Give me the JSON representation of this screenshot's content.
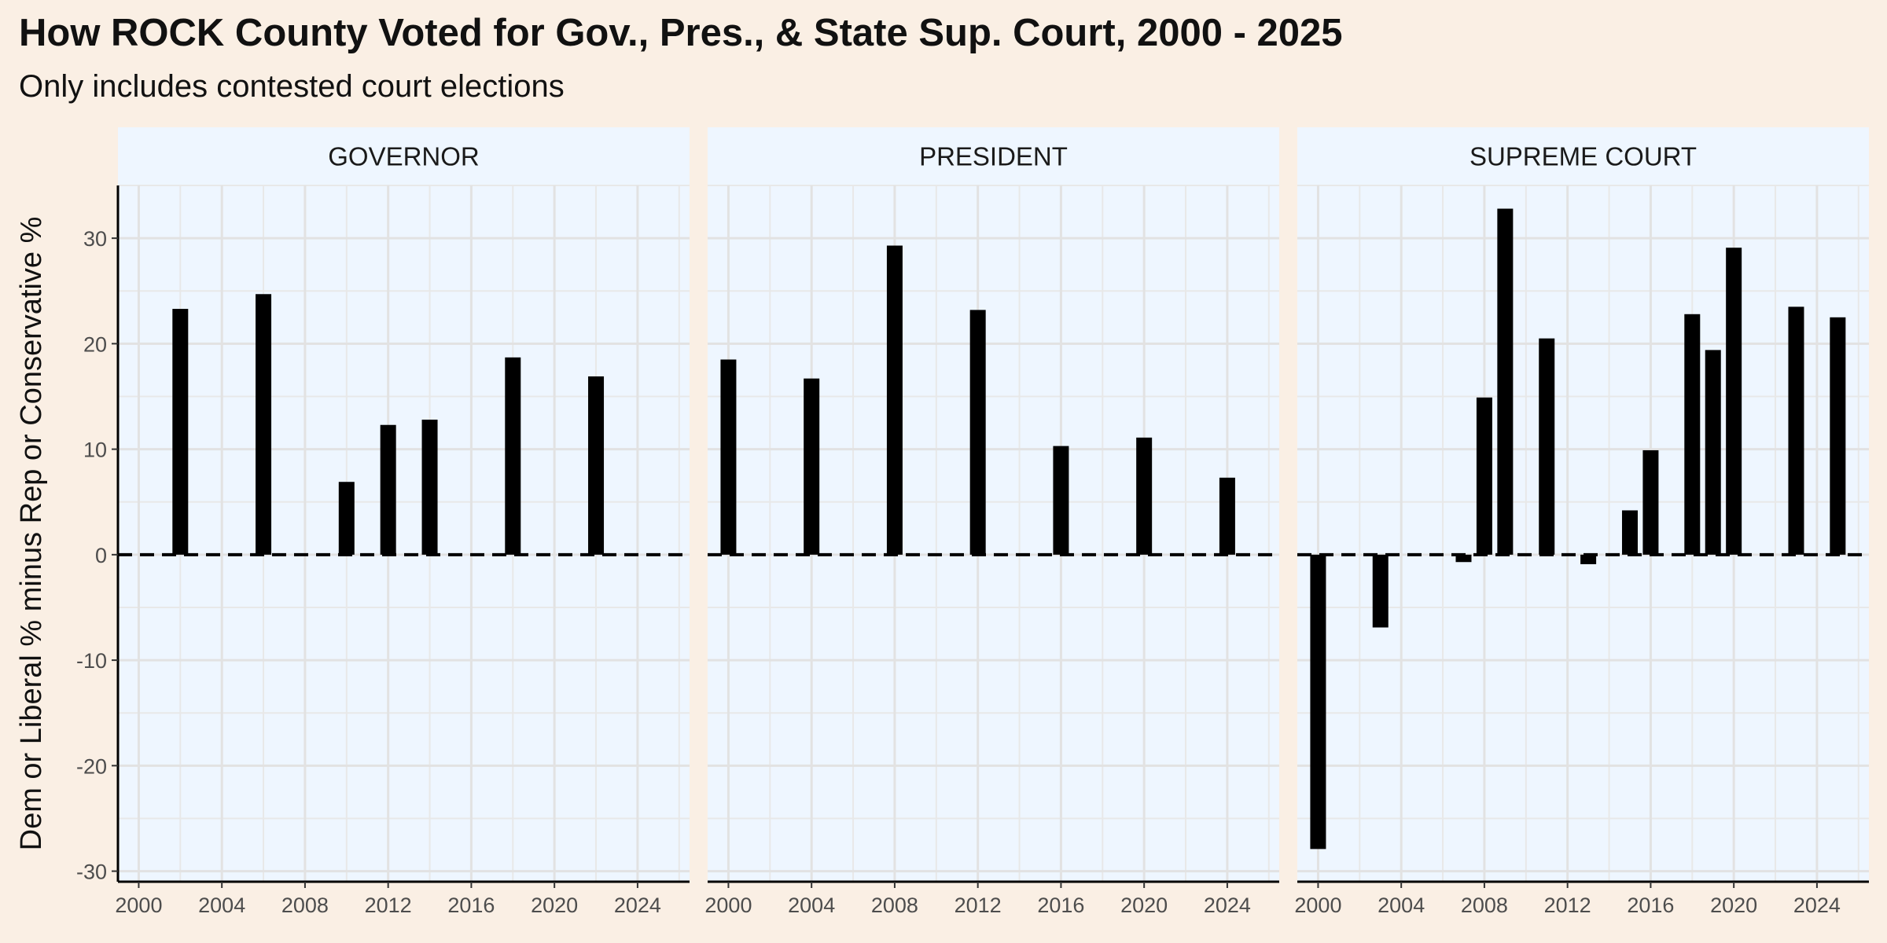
{
  "title": "How ROCK County Voted for Gov., Pres., & State Sup. Court, 2000 - 2025",
  "subtitle": "Only includes contested court elections",
  "chart_data": {
    "type": "bar",
    "ylabel": "Dem or Liberal % minus Rep or Conservative %",
    "xlabel": "",
    "xlim": [
      1999,
      2026.5
    ],
    "ylim": [
      -31,
      35
    ],
    "x_ticks": [
      "2000",
      "2004",
      "2008",
      "2012",
      "2016",
      "2020",
      "2024"
    ],
    "y_ticks": [
      "-30",
      "-20",
      "-10",
      "0",
      "10",
      "20",
      "30"
    ],
    "reference_line": {
      "y": 0,
      "style": "dashed"
    },
    "grid": true,
    "colors": {
      "bar": "#000000",
      "panel_bg": "#eef6ff",
      "strip_bg": "#eef6ff",
      "page_bg": "#faefe4",
      "grid": "#e8e8e8"
    },
    "panels": [
      {
        "name": "GOVERNOR",
        "x": [
          2002,
          2006,
          2010,
          2012,
          2014,
          2018,
          2022
        ],
        "values": [
          23.3,
          24.7,
          6.9,
          12.3,
          12.8,
          18.7,
          16.9
        ]
      },
      {
        "name": "PRESIDENT",
        "x": [
          2000,
          2004,
          2008,
          2012,
          2016,
          2020,
          2024
        ],
        "values": [
          18.5,
          16.7,
          29.3,
          23.2,
          10.3,
          11.1,
          7.3
        ]
      },
      {
        "name": "SUPREME COURT",
        "x": [
          2000,
          2003,
          2007,
          2008,
          2009,
          2011,
          2013,
          2015,
          2016,
          2018,
          2019,
          2020,
          2023,
          2025
        ],
        "values": [
          -27.9,
          -6.9,
          -0.7,
          14.9,
          32.8,
          20.5,
          -0.9,
          4.2,
          9.9,
          22.8,
          19.4,
          29.1,
          23.5,
          22.5
        ]
      }
    ]
  }
}
